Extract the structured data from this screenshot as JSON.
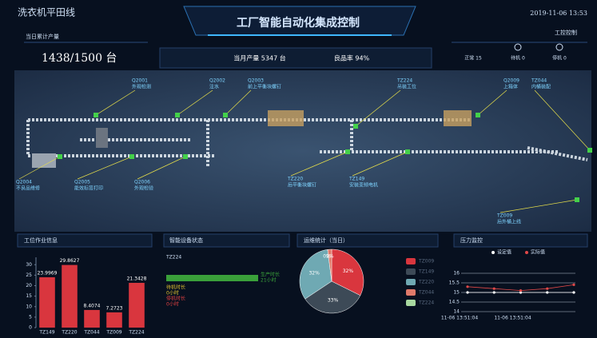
{
  "header": {
    "line": "洗衣机平田线",
    "title": "工厂智能自动化集成控制",
    "datetime": "2019-11-06 13:53",
    "control": "工控控制"
  },
  "summary": {
    "daily_label": "当日累计产量",
    "daily_value": "1438/1500 台",
    "monthly": "当月产量 5347 台",
    "yield": "良品率 94%",
    "normal": "正常 15",
    "standby": "待机 0",
    "stopped": "停机 0"
  },
  "map": {
    "labels": [
      {
        "code": "Q2001",
        "name": "外观检测"
      },
      {
        "code": "Q2002",
        "name": "注水"
      },
      {
        "code": "Q2003",
        "name": "前上平衡块螺钉"
      },
      {
        "code": "TZ224",
        "name": "吊装工位"
      },
      {
        "code": "Q2009",
        "name": "上箱体"
      },
      {
        "code": "TZ044",
        "name": "内桶装配"
      },
      {
        "code": "Q2004",
        "name": "不良品维修"
      },
      {
        "code": "Q2005",
        "name": "能效标签打印"
      },
      {
        "code": "Q2006",
        "name": "外观检验"
      },
      {
        "code": "TZ220",
        "name": "后平衡块螺钉"
      },
      {
        "code": "TZ149",
        "name": "安装变频电机"
      },
      {
        "code": "TZ009",
        "name": "后外桶上线"
      }
    ]
  },
  "device_status": {
    "title": "智能设备状态",
    "station": "TZ224",
    "items": [
      {
        "label": "生产时长",
        "value": "21小时"
      },
      {
        "label": "待机时长",
        "value": "0小时"
      },
      {
        "label": "停机时长",
        "value": "0小时"
      }
    ]
  },
  "chart_data": [
    {
      "type": "bar",
      "title": "工位作业信息",
      "categories": [
        "TZ149",
        "TZ220",
        "TZ044",
        "TZ009",
        "TZ224"
      ],
      "values": [
        23.9969,
        29.8627,
        8.4074,
        7.2723,
        21.3428
      ],
      "color": "#d9363e",
      "ylim": [
        0,
        32
      ],
      "yticks": [
        0,
        5,
        10,
        15,
        20,
        25,
        30
      ]
    },
    {
      "type": "pie",
      "title": "运维统计（当日）",
      "categories": [
        "TZ009",
        "TZ149",
        "TZ220",
        "TZ044",
        "TZ224"
      ],
      "values": [
        32,
        33,
        32,
        2,
        0
      ],
      "value_labels": [
        "32%",
        "33%",
        "32%",
        "2%",
        "0%"
      ],
      "colors": [
        "#d9363e",
        "#3d4a57",
        "#6fa9b3",
        "#e07a6a",
        "#a8d8a0"
      ]
    },
    {
      "type": "line",
      "title": "压力监控",
      "categories": [
        "11-06 13:51:04",
        null,
        "11-06 13:51:04",
        null,
        null
      ],
      "series": [
        {
          "name": "设定值",
          "color": "#ffffff",
          "values": [
            15,
            15,
            15,
            15,
            15
          ]
        },
        {
          "name": "实际值",
          "color": "#e04848",
          "values": [
            15.3,
            15.2,
            15.1,
            15.2,
            15.4
          ]
        }
      ],
      "ylim": [
        14,
        16
      ],
      "yticks": [
        14,
        14.5,
        15,
        15.5,
        16
      ],
      "grid": true
    }
  ]
}
